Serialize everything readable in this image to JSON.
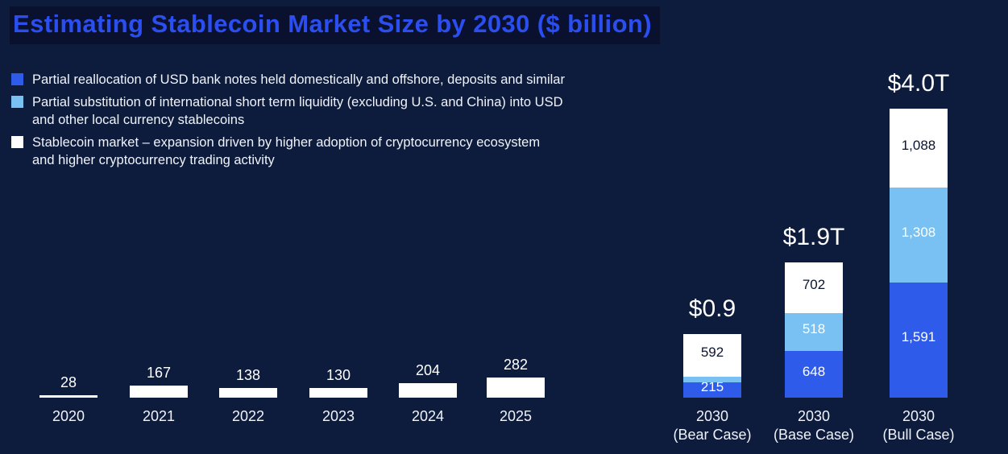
{
  "title": "Estimating Stablecoin Market Size by 2030 ($ billion)",
  "colors": {
    "background": "#0d1b3c",
    "title_text": "#2b4ef0",
    "title_highlight": "#0a112e",
    "text": "#f0f3f9",
    "dark_text": "#0b142e",
    "blue": "#2e5bea",
    "light_blue": "#79c1f2",
    "white": "#ffffff"
  },
  "legend": {
    "items": [
      {
        "color": "blue",
        "text": "Partial reallocation of USD bank notes held domestically and offshore, deposits and similar"
      },
      {
        "color": "light_blue",
        "text": "Partial substitution of international short term liquidity (excluding U.S. and China) into USD\nand other local currency stablecoins"
      },
      {
        "color": "white",
        "text": "Stablecoin market – expansion driven by higher adoption of cryptocurrency ecosystem\nand higher cryptocurrency trading activity"
      }
    ]
  },
  "chart_data": {
    "type": "bar",
    "stacked": true,
    "title": "Estimating Stablecoin Market Size by 2030 ($ billion)",
    "unit": "$ billion",
    "ylim": [
      0,
      4000
    ],
    "grid": false,
    "legend_position": "top-left",
    "series": [
      {
        "key": "blue",
        "label": "Partial reallocation of USD bank notes held domestically and offshore, deposits and similar"
      },
      {
        "key": "light_blue",
        "label": "Partial substitution of international short term liquidity (excluding U.S. and China) into USD and other local currency stablecoins"
      },
      {
        "key": "white",
        "label": "Stablecoin market – expansion driven by higher adoption of cryptocurrency ecosystem and higher cryptocurrency trading activity"
      }
    ],
    "bars": [
      {
        "category": "2020",
        "value_label": "28",
        "segments": [
          {
            "color": "white",
            "value": 28
          }
        ]
      },
      {
        "category": "2021",
        "value_label": "167",
        "segments": [
          {
            "color": "white",
            "value": 167
          }
        ]
      },
      {
        "category": "2022",
        "value_label": "138",
        "segments": [
          {
            "color": "white",
            "value": 138
          }
        ]
      },
      {
        "category": "2023",
        "value_label": "130",
        "segments": [
          {
            "color": "white",
            "value": 130
          }
        ]
      },
      {
        "category": "2024",
        "value_label": "204",
        "segments": [
          {
            "color": "white",
            "value": 204
          }
        ]
      },
      {
        "category": "2025",
        "value_label": "282",
        "segments": [
          {
            "color": "white",
            "value": 282
          }
        ]
      },
      {
        "category": "2030",
        "subcategory": "(Bear Case)",
        "total_label": "$0.9",
        "segments": [
          {
            "color": "blue",
            "value": 215,
            "label": "215"
          },
          {
            "color": "light_blue",
            "value": 76,
            "label": "76"
          },
          {
            "color": "white",
            "value": 592,
            "label": "592"
          }
        ]
      },
      {
        "category": "2030",
        "subcategory": "(Base Case)",
        "total_label": "$1.9T",
        "segments": [
          {
            "color": "blue",
            "value": 648,
            "label": "648"
          },
          {
            "color": "light_blue",
            "value": 518,
            "label": "518"
          },
          {
            "color": "white",
            "value": 702,
            "label": "702"
          }
        ]
      },
      {
        "category": "2030",
        "subcategory": "(Bull Case)",
        "total_label": "$4.0T",
        "segments": [
          {
            "color": "blue",
            "value": 1591,
            "label": "1,591"
          },
          {
            "color": "light_blue",
            "value": 1308,
            "label": "1,308"
          },
          {
            "color": "white",
            "value": 1088,
            "label": "1,088"
          }
        ]
      }
    ]
  }
}
